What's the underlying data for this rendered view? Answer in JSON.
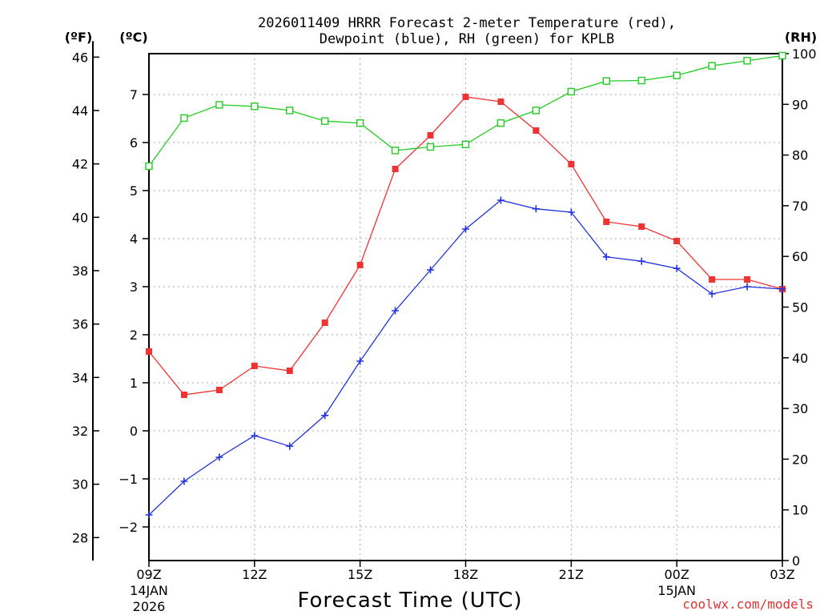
{
  "chart_data": {
    "type": "line",
    "title_line1": "2026011409 HRRR Forecast 2-meter Temperature (red),",
    "title_line2": "Dewpoint (blue), RH (green) for KPLB",
    "xlabel": "Forecast Time (UTC)",
    "credit": "coolwx.com/models",
    "units": {
      "fahrenheit": "(ºF)",
      "celsius": "(ºC)",
      "rh": "(RH)"
    },
    "x_hours": [
      0,
      1,
      2,
      3,
      4,
      5,
      6,
      7,
      8,
      9,
      10,
      11,
      12,
      13,
      14,
      15,
      16,
      17,
      18
    ],
    "x_range": [
      0,
      18
    ],
    "x_ticks": [
      {
        "hour": 0,
        "label": "09Z",
        "sub1": "14JAN",
        "sub2": "2026"
      },
      {
        "hour": 3,
        "label": "12Z",
        "sub1": "",
        "sub2": ""
      },
      {
        "hour": 6,
        "label": "15Z",
        "sub1": "",
        "sub2": ""
      },
      {
        "hour": 9,
        "label": "18Z",
        "sub1": "",
        "sub2": ""
      },
      {
        "hour": 12,
        "label": "21Z",
        "sub1": "",
        "sub2": ""
      },
      {
        "hour": 15,
        "label": "00Z",
        "sub1": "15JAN",
        "sub2": ""
      },
      {
        "hour": 18,
        "label": "03Z",
        "sub1": "",
        "sub2": ""
      }
    ],
    "celsius_axis": {
      "range": [
        -2.7,
        7.85
      ],
      "ticks": [
        -2,
        -1,
        0,
        1,
        2,
        3,
        4,
        5,
        6,
        7
      ]
    },
    "fahrenheit_axis": {
      "range": [
        27.14,
        46.13
      ],
      "ticks": [
        28,
        30,
        32,
        34,
        36,
        38,
        40,
        42,
        44,
        46
      ]
    },
    "rh_axis": {
      "range": [
        0,
        100
      ],
      "ticks": [
        0,
        10,
        20,
        30,
        40,
        50,
        60,
        70,
        80,
        90,
        100
      ]
    },
    "series": [
      {
        "name": "Temperature",
        "axis": "celsius",
        "color": "#ee3333",
        "marker": "filled-square",
        "values": [
          1.65,
          0.75,
          0.85,
          1.35,
          1.25,
          2.25,
          3.45,
          5.45,
          6.15,
          6.95,
          6.85,
          6.25,
          5.55,
          4.35,
          4.25,
          3.95,
          3.15,
          3.15,
          2.95
        ]
      },
      {
        "name": "Dewpoint",
        "axis": "celsius",
        "color": "#2233dd",
        "marker": "plus",
        "values": [
          -1.75,
          -1.05,
          -0.55,
          -0.1,
          -0.32,
          0.32,
          1.45,
          2.5,
          3.35,
          4.2,
          4.8,
          4.62,
          4.55,
          3.62,
          3.53,
          3.38,
          2.85,
          3.0,
          2.95
        ]
      },
      {
        "name": "RH",
        "axis": "rh",
        "color": "#22cc22",
        "marker": "open-square",
        "values": [
          77.8,
          87.3,
          89.9,
          89.6,
          88.8,
          86.7,
          86.3,
          80.9,
          81.6,
          82.1,
          86.3,
          88.8,
          92.5,
          94.6,
          94.7,
          95.7,
          97.6,
          98.6,
          99.6
        ]
      }
    ]
  }
}
